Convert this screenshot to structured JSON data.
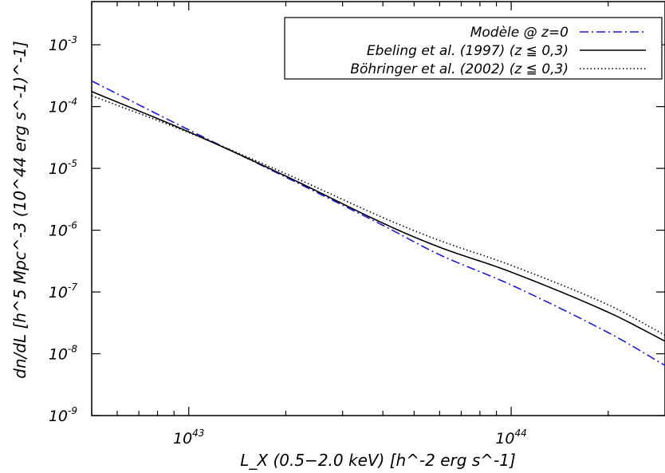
{
  "chart_data": {
    "type": "line",
    "xscale": "log",
    "yscale": "log",
    "xlim": [
      5e+42,
      3e+44
    ],
    "ylim": [
      1e-09,
      0.005
    ],
    "xlabel": "L_X (0.5−2.0 keV) [h^-2 erg s^-1]",
    "ylabel": "dn/dL [h^5 Mpc^-3 (10^44 erg s^-1)^-1]",
    "x_ticks": [
      {
        "value": 1e+43,
        "base": "10",
        "exp": "43"
      },
      {
        "value": 1e+44,
        "base": "10",
        "exp": "44"
      }
    ],
    "y_ticks": [
      {
        "value": 1e-09,
        "base": "10",
        "exp": "-9"
      },
      {
        "value": 1e-08,
        "base": "10",
        "exp": "-8"
      },
      {
        "value": 1e-07,
        "base": "10",
        "exp": "-7"
      },
      {
        "value": 1e-06,
        "base": "10",
        "exp": "-6"
      },
      {
        "value": 1e-05,
        "base": "10",
        "exp": "-5"
      },
      {
        "value": 0.0001,
        "base": "10",
        "exp": "-4"
      },
      {
        "value": 0.001,
        "base": "10",
        "exp": "-3"
      }
    ],
    "legend_position": "top-right",
    "grid": false,
    "series": [
      {
        "name": "Modèle @ z=0",
        "color": "#1a1ad6",
        "dash": "dash-dot",
        "x": [
          5e+42,
          1e+43,
          2e+43,
          4e+43,
          6e+43,
          1e+44,
          2e+44,
          3e+44
        ],
        "y": [
          0.00026,
          4.2e-05,
          7.2e-06,
          1.2e-06,
          4e-07,
          1.3e-07,
          2.2e-08,
          6.5e-09
        ]
      },
      {
        "name": "Ebeling et al. (1997) (z ≦ 0,3)",
        "color": "#000000",
        "dash": "solid",
        "x": [
          5e+42,
          1e+43,
          2e+43,
          4e+43,
          6e+43,
          1e+44,
          2e+44,
          3e+44
        ],
        "y": [
          0.000175,
          3.9e-05,
          7.5e-06,
          1.3e-06,
          5.3e-07,
          2.1e-07,
          4.7e-08,
          1.6e-08
        ]
      },
      {
        "name": "Böhringer et al. (2002) (z ≦ 0,3)",
        "color": "#000000",
        "dash": "dotted",
        "x": [
          5e+42,
          1e+43,
          2e+43,
          4e+43,
          6e+43,
          1e+44,
          2e+44,
          3e+44
        ],
        "y": [
          0.00015,
          3.8e-05,
          8.2e-06,
          1.6e-06,
          6.8e-07,
          2.7e-07,
          6.2e-08,
          2e-08
        ]
      }
    ]
  }
}
